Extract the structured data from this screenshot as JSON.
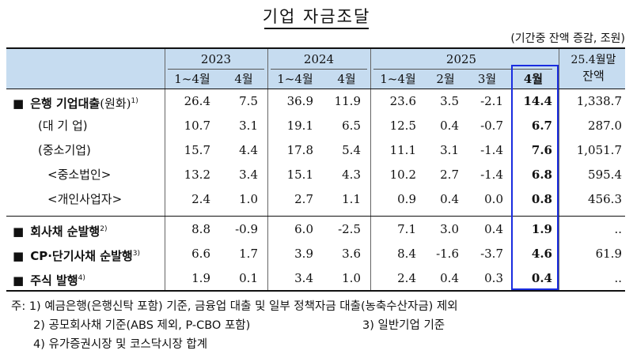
{
  "title": "기업 자금조달",
  "unit": "(기간중 잔액 증감, 조원)",
  "header": {
    "years": [
      "2023",
      "2024",
      "2025"
    ],
    "subcols": [
      "1~4월",
      "4월",
      "1~4월",
      "4월",
      "1~4월",
      "2월",
      "3월",
      "4월"
    ],
    "balance_col_line1": "25.4월말",
    "balance_col_line2": "잔액"
  },
  "rows": [
    {
      "bullet": "■",
      "label": "은행 기업대출",
      "suffix": "(원화)",
      "sup": "1)",
      "values": [
        "26.4",
        "7.5",
        "36.9",
        "11.9",
        "23.6",
        "3.5",
        "-2.1",
        "14.4",
        "1,338.7"
      ]
    },
    {
      "bullet": "",
      "label": "(대 기 업)",
      "suffix": "",
      "sup": "",
      "values": [
        "10.7",
        "3.1",
        "19.1",
        "6.5",
        "12.5",
        "0.4",
        "-0.7",
        "6.7",
        "287.0"
      ]
    },
    {
      "bullet": "",
      "label": "(중소기업)",
      "suffix": "",
      "sup": "",
      "values": [
        "15.7",
        "4.4",
        "17.8",
        "5.4",
        "11.1",
        "3.1",
        "-1.4",
        "7.6",
        "1,051.7"
      ]
    },
    {
      "bullet": "",
      "label": "<중소법인>",
      "suffix": "",
      "sup": "",
      "values": [
        "13.2",
        "3.4",
        "15.1",
        "4.3",
        "10.2",
        "2.7",
        "-1.4",
        "6.8",
        "595.4"
      ]
    },
    {
      "bullet": "",
      "label": "<개인사업자>",
      "suffix": "",
      "sup": "",
      "values": [
        "2.4",
        "1.0",
        "2.7",
        "1.1",
        "0.9",
        "0.4",
        "0.0",
        "0.8",
        "456.3"
      ]
    },
    {
      "bullet": "■",
      "label": "회사채 순발행",
      "suffix": "",
      "sup": "2)",
      "values": [
        "8.8",
        "-0.9",
        "6.0",
        "-2.5",
        "7.1",
        "3.0",
        "0.4",
        "1.9",
        ".."
      ]
    },
    {
      "bullet": "■",
      "label": "CP·단기사채 순발행",
      "suffix": "",
      "sup": "3)",
      "values": [
        "6.6",
        "1.7",
        "3.9",
        "3.6",
        "8.4",
        "-1.6",
        "-3.7",
        "4.6",
        "61.9"
      ]
    },
    {
      "bullet": "■",
      "label": "주식 발행",
      "suffix": "",
      "sup": "4)",
      "values": [
        "1.9",
        "0.1",
        "3.4",
        "1.0",
        "2.4",
        "0.4",
        "0.3",
        "0.4",
        ".."
      ]
    }
  ],
  "footnotes": [
    "주: 1) 예금은행(은행신탁 포함) 기준, 금융업 대출 및 일부 정책자금 대출(농축수산자금) 제외",
    "2) 공모회사채 기준(ABS 제외, P-CBO 포함)",
    "3) 일반기업 기준",
    "4) 유가증권시장 및 코스닥시장 합계"
  ],
  "colors": {
    "header_bg": "#c6dcf0",
    "highlight_border": "#1a2de0"
  }
}
